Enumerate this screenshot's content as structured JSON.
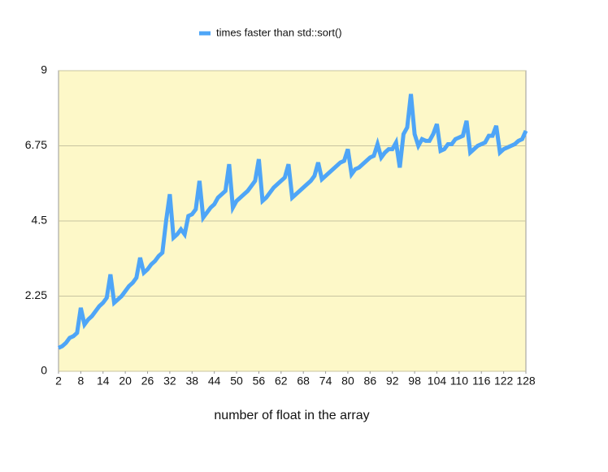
{
  "chart_data": {
    "type": "line",
    "x_label": "number of float in the array",
    "x": [
      2,
      3,
      4,
      5,
      6,
      7,
      8,
      9,
      10,
      11,
      12,
      13,
      14,
      15,
      16,
      17,
      18,
      19,
      20,
      21,
      22,
      23,
      24,
      25,
      26,
      27,
      28,
      29,
      30,
      31,
      32,
      33,
      34,
      35,
      36,
      37,
      38,
      39,
      40,
      41,
      42,
      43,
      44,
      45,
      46,
      47,
      48,
      49,
      50,
      51,
      52,
      53,
      54,
      55,
      56,
      57,
      58,
      59,
      60,
      61,
      62,
      63,
      64,
      65,
      66,
      67,
      68,
      69,
      70,
      71,
      72,
      73,
      74,
      75,
      76,
      77,
      78,
      79,
      80,
      81,
      82,
      83,
      84,
      85,
      86,
      87,
      88,
      89,
      90,
      91,
      92,
      93,
      94,
      95,
      96,
      97,
      98,
      99,
      100,
      101,
      102,
      103,
      104,
      105,
      106,
      107,
      108,
      109,
      110,
      111,
      112,
      113,
      114,
      115,
      116,
      117,
      118,
      119,
      120,
      121,
      122,
      123,
      124,
      125,
      126,
      127,
      128
    ],
    "series": [
      {
        "name": "times faster than std::sort()",
        "color": "#4ea5f7",
        "values": [
          0.7,
          0.75,
          0.85,
          1.0,
          1.05,
          1.15,
          1.9,
          1.4,
          1.55,
          1.65,
          1.8,
          1.95,
          2.05,
          2.2,
          2.9,
          2.05,
          2.15,
          2.25,
          2.4,
          2.55,
          2.65,
          2.8,
          3.4,
          2.95,
          3.05,
          3.2,
          3.3,
          3.45,
          3.55,
          4.5,
          5.3,
          4.0,
          4.1,
          4.25,
          4.1,
          4.65,
          4.7,
          4.85,
          5.7,
          4.6,
          4.75,
          4.9,
          5.0,
          5.2,
          5.3,
          5.4,
          6.2,
          4.9,
          5.1,
          5.2,
          5.3,
          5.4,
          5.55,
          5.7,
          6.35,
          5.1,
          5.2,
          5.35,
          5.5,
          5.6,
          5.7,
          5.8,
          6.2,
          5.2,
          5.3,
          5.4,
          5.5,
          5.6,
          5.7,
          5.85,
          6.25,
          5.75,
          5.85,
          5.95,
          6.05,
          6.15,
          6.25,
          6.3,
          6.65,
          5.9,
          6.05,
          6.1,
          6.2,
          6.3,
          6.4,
          6.45,
          6.8,
          6.4,
          6.55,
          6.65,
          6.65,
          6.85,
          6.1,
          7.1,
          7.3,
          8.3,
          7.1,
          6.75,
          6.95,
          6.9,
          6.9,
          7.1,
          7.4,
          6.6,
          6.65,
          6.8,
          6.8,
          6.95,
          7.0,
          7.05,
          7.5,
          6.55,
          6.65,
          6.75,
          6.8,
          6.85,
          7.05,
          7.05,
          7.35,
          6.55,
          6.65,
          6.7,
          6.75,
          6.8,
          6.9,
          6.95,
          7.2
        ]
      }
    ],
    "xlim": [
      2,
      128
    ],
    "xticks": [
      2,
      8,
      14,
      20,
      26,
      32,
      38,
      44,
      50,
      56,
      62,
      68,
      74,
      80,
      86,
      92,
      98,
      104,
      110,
      116,
      122,
      128
    ],
    "ylim": [
      0,
      9
    ],
    "yticks": [
      0,
      2.25,
      4.5,
      6.75,
      9
    ],
    "grid": true,
    "legend": "top",
    "plot_background": "#fdf8c8"
  }
}
